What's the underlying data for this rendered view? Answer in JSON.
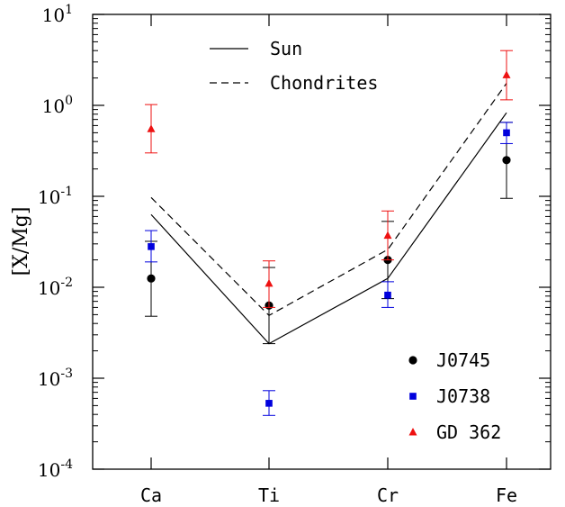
{
  "chart_data": {
    "type": "scatter",
    "categories": [
      "Ca",
      "Ti",
      "Cr",
      "Fe"
    ],
    "ylabel": "[X/Mg]",
    "yscale": "log",
    "ylim": [
      0.0001,
      10
    ],
    "y_tick_labels": [
      {
        "base": "10",
        "exp": "1"
      },
      {
        "base": "10",
        "exp": "0"
      },
      {
        "base": "10",
        "exp": "-1"
      },
      {
        "base": "10",
        "exp": "-2"
      },
      {
        "base": "10",
        "exp": "-3"
      },
      {
        "base": "10",
        "exp": "-4"
      }
    ],
    "lines": [
      {
        "name": "Sun",
        "style": "solid",
        "color": "#000000",
        "values": [
          0.063,
          0.0024,
          0.0125,
          0.83
        ]
      },
      {
        "name": "Chondrites",
        "style": "dashed",
        "color": "#000000",
        "values": [
          0.097,
          0.0049,
          0.026,
          1.75
        ]
      }
    ],
    "series": [
      {
        "name": "J0745",
        "marker": "circle",
        "color": "#000000",
        "points": [
          {
            "x": "Ca",
            "y": 0.0125,
            "lo": 0.0048,
            "hi": 0.032
          },
          {
            "x": "Ti",
            "y": 0.0063,
            "lo": 0.0024,
            "hi": 0.0165
          },
          {
            "x": "Cr",
            "y": 0.02,
            "lo": 0.0075,
            "hi": 0.053
          },
          {
            "x": "Fe",
            "y": 0.25,
            "lo": 0.095,
            "hi": 0.65
          }
        ]
      },
      {
        "name": "J0738",
        "marker": "square",
        "color": "#0000dd",
        "points": [
          {
            "x": "Ca",
            "y": 0.028,
            "lo": 0.019,
            "hi": 0.042
          },
          {
            "x": "Ti",
            "y": 0.00053,
            "lo": 0.00039,
            "hi": 0.00073
          },
          {
            "x": "Cr",
            "y": 0.0082,
            "lo": 0.006,
            "hi": 0.0115
          },
          {
            "x": "Fe",
            "y": 0.5,
            "lo": 0.38,
            "hi": 0.65
          }
        ]
      },
      {
        "name": "GD 362",
        "marker": "triangle",
        "color": "#ee1111",
        "points": [
          {
            "x": "Ca",
            "y": 0.55,
            "lo": 0.3,
            "hi": 1.02
          },
          {
            "x": "Ti",
            "y": 0.011,
            "lo": 0.006,
            "hi": 0.0195
          },
          {
            "x": "Cr",
            "y": 0.037,
            "lo": 0.02,
            "hi": 0.069
          },
          {
            "x": "Fe",
            "y": 2.15,
            "lo": 1.15,
            "hi": 4.0
          }
        ]
      }
    ],
    "legend_lines_placement": "top-left",
    "legend_points_placement": "bottom-right",
    "grid": false
  }
}
